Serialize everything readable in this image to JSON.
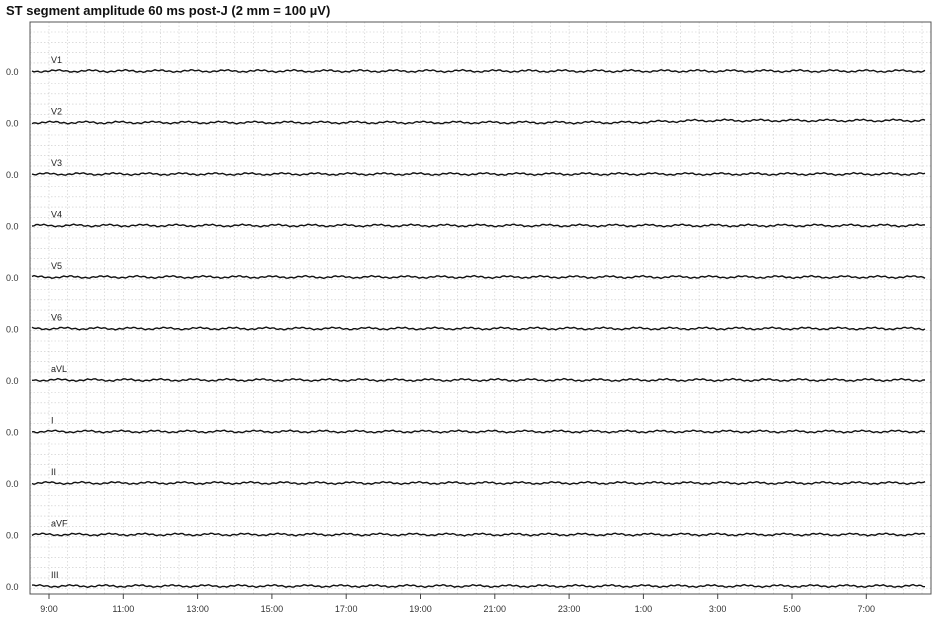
{
  "chart_data": {
    "type": "line",
    "title": "ST segment amplitude 60 ms post-J (2 mm = 100 µV)",
    "x_tick_labels": [
      "9:00",
      "11:00",
      "13:00",
      "15:00",
      "17:00",
      "19:00",
      "21:00",
      "23:00",
      "1:00",
      "3:00",
      "5:00",
      "7:00"
    ],
    "baseline_label": "0.0",
    "grid": true,
    "series": [
      {
        "name": "V1",
        "values": [
          0,
          0,
          0,
          0,
          0,
          0,
          0,
          0,
          0,
          0,
          0,
          0,
          0
        ]
      },
      {
        "name": "V2",
        "values": [
          0,
          0,
          0,
          0,
          0,
          0,
          0,
          0,
          0,
          0.05,
          0.05,
          0.05,
          0.05
        ]
      },
      {
        "name": "V3",
        "values": [
          0,
          0,
          0,
          0,
          0,
          0,
          0,
          0,
          0,
          0,
          0,
          0,
          0
        ]
      },
      {
        "name": "V4",
        "values": [
          0,
          0,
          0,
          0,
          0,
          0,
          0,
          0,
          0,
          0,
          0,
          0,
          0
        ]
      },
      {
        "name": "V5",
        "values": [
          0,
          0,
          0,
          0,
          0,
          0,
          0,
          0,
          0,
          0,
          0,
          0,
          0
        ]
      },
      {
        "name": "V6",
        "values": [
          0,
          0,
          0,
          0,
          0,
          0,
          0,
          0,
          0,
          0,
          0,
          0,
          0
        ]
      },
      {
        "name": "aVL",
        "values": [
          0,
          0,
          0,
          0,
          0,
          0,
          0,
          0,
          0,
          0,
          0,
          0,
          0
        ]
      },
      {
        "name": "I",
        "values": [
          0,
          0,
          0,
          0,
          0,
          0,
          0,
          0,
          0,
          0,
          0,
          0,
          0
        ]
      },
      {
        "name": "II",
        "values": [
          0,
          0,
          0,
          0,
          0,
          0,
          0,
          0,
          0,
          0,
          0,
          0,
          0
        ]
      },
      {
        "name": "aVF",
        "values": [
          0,
          0,
          0,
          0,
          0,
          0,
          0,
          0,
          0,
          0,
          0,
          0,
          0
        ]
      },
      {
        "name": "III",
        "values": [
          0,
          0,
          0,
          0,
          0,
          0,
          0,
          0,
          0,
          0,
          0,
          0,
          0
        ]
      }
    ]
  }
}
